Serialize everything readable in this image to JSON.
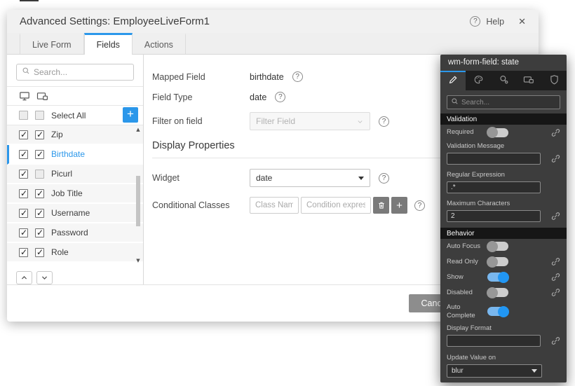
{
  "icons": {
    "help_glyph": "?",
    "close_glyph": "✕",
    "scroll_up_glyph": "▲",
    "scroll_down_glyph": "▼"
  },
  "dialog": {
    "title": "Advanced Settings: EmployeeLiveForm1",
    "help": "Help",
    "tabs": [
      {
        "label": "Live Form",
        "active": false
      },
      {
        "label": "Fields",
        "active": true
      },
      {
        "label": "Actions",
        "active": false
      }
    ],
    "sidebar": {
      "search_placeholder": "Search...",
      "select_all": {
        "label": "Select All",
        "cb1": false,
        "cb2": false,
        "add_button": "+"
      },
      "fields": [
        {
          "label": "Zip",
          "cb1": true,
          "cb2": true,
          "selected": false
        },
        {
          "label": "Birthdate",
          "cb1": true,
          "cb2": true,
          "selected": true
        },
        {
          "label": "Picurl",
          "cb1": true,
          "cb2": false,
          "selected": false
        },
        {
          "label": "Job Title",
          "cb1": true,
          "cb2": true,
          "selected": false
        },
        {
          "label": "Username",
          "cb1": true,
          "cb2": true,
          "selected": false
        },
        {
          "label": "Password",
          "cb1": true,
          "cb2": true,
          "selected": false
        },
        {
          "label": "Role",
          "cb1": true,
          "cb2": true,
          "selected": false
        }
      ]
    },
    "content": {
      "mapped_field": {
        "label": "Mapped Field",
        "value": "birthdate"
      },
      "field_type": {
        "label": "Field Type",
        "value": "date"
      },
      "filter_on_field": {
        "label": "Filter on field",
        "placeholder": "Filter Field"
      },
      "section_title": "Display Properties",
      "widget": {
        "label": "Widget",
        "value": "date"
      },
      "conditional_classes": {
        "label": "Conditional Classes",
        "class_placeholder": "Class Name",
        "condition_placeholder": "Condition expression"
      }
    },
    "footer": {
      "cancel": "Cancel"
    }
  },
  "inspector": {
    "title": "wm-form-field: state",
    "search_placeholder": "Search...",
    "tabs": [
      {
        "icon": "pencil-icon",
        "active": true
      },
      {
        "icon": "palette-icon",
        "active": false
      },
      {
        "icon": "search-gear-icon",
        "active": false
      },
      {
        "icon": "devices-icon",
        "active": false
      },
      {
        "icon": "shield-icon",
        "active": false
      }
    ],
    "sections": [
      {
        "header": "Validation",
        "rows": [
          {
            "type": "toggle",
            "label": "Required",
            "on": false,
            "link": true
          },
          {
            "type": "input",
            "label": "Validation Message",
            "value": "",
            "link": true
          },
          {
            "type": "input",
            "label": "Regular Expression",
            "value": ".*",
            "link": false
          },
          {
            "type": "input",
            "label": "Maximum Characters",
            "value": "2",
            "link": true
          }
        ]
      },
      {
        "header": "Behavior",
        "rows": [
          {
            "type": "toggle",
            "label": "Auto Focus",
            "on": false,
            "link": false
          },
          {
            "type": "toggle",
            "label": "Read Only",
            "on": false,
            "link": true
          },
          {
            "type": "toggle",
            "label": "Show",
            "on": true,
            "link": true
          },
          {
            "type": "toggle",
            "label": "Disabled",
            "on": false,
            "link": true
          },
          {
            "type": "toggle",
            "label": "Auto Complete",
            "on": true,
            "link": false
          },
          {
            "type": "input",
            "label": "Display Format",
            "value": "",
            "link": true
          },
          {
            "type": "select",
            "label": "Update Value on",
            "value": "blur",
            "link": false
          }
        ]
      }
    ]
  },
  "colors": {
    "accent": "#2b97ea",
    "panel_bg": "#3d3d3d"
  }
}
